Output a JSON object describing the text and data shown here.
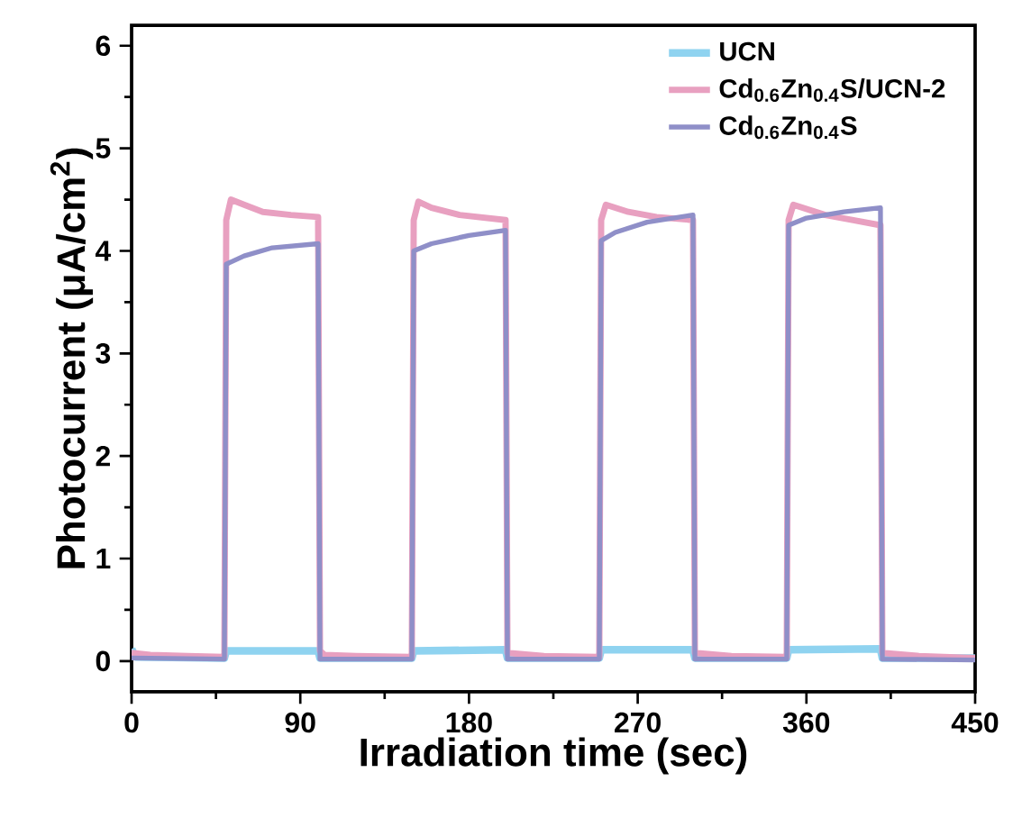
{
  "chart_data": {
    "type": "line",
    "xlabel": "Irradiation time (sec)",
    "ylabel": "Photocurrent (μA/cm$^{2}$)",
    "xlim": [
      0,
      450
    ],
    "ylim": [
      -0.3,
      6.2
    ],
    "xticks": [
      0,
      90,
      180,
      270,
      360,
      450
    ],
    "yticks": [
      0,
      1,
      2,
      3,
      4,
      5,
      6
    ],
    "legend": "top right",
    "series": [
      {
        "name": "UCN",
        "color": "#8fd3f0",
        "x": [
          0,
          2,
          49.5,
          50.5,
          99.5,
          100.5,
          149.5,
          150.5,
          199.5,
          200.5,
          249.5,
          250.5,
          299.5,
          300.5,
          349.5,
          350.5,
          399.5,
          400.5,
          450
        ],
        "values": [
          0.12,
          0.04,
          0.03,
          0.1,
          0.1,
          0.03,
          0.03,
          0.1,
          0.11,
          0.03,
          0.03,
          0.11,
          0.11,
          0.03,
          0.03,
          0.11,
          0.12,
          0.03,
          0.03
        ]
      },
      {
        "name": "Cd$_{0.6}$Zn$_{0.4}$S/UCN-2",
        "color": "#e8a0c0",
        "x": [
          0,
          10,
          30,
          49.5,
          50.5,
          53,
          60,
          70,
          85,
          99.5,
          100.5,
          103,
          120,
          149.5,
          150.5,
          153,
          160,
          175,
          199.5,
          200.5,
          220,
          249.5,
          250.5,
          253,
          265,
          280,
          299.5,
          300.5,
          320,
          349.5,
          350.5,
          353,
          370,
          385,
          399.5,
          400.5,
          420,
          450
        ],
        "values": [
          0.08,
          0.06,
          0.05,
          0.04,
          4.3,
          4.5,
          4.45,
          4.38,
          4.35,
          4.33,
          0.1,
          0.06,
          0.05,
          0.04,
          4.3,
          4.48,
          4.42,
          4.35,
          4.3,
          0.08,
          0.05,
          0.04,
          4.3,
          4.45,
          4.38,
          4.33,
          4.3,
          0.08,
          0.05,
          0.04,
          4.3,
          4.45,
          4.35,
          4.3,
          4.25,
          0.08,
          0.05,
          0.03
        ]
      },
      {
        "name": "Cd$_{0.6}$Zn$_{0.4}$S",
        "color": "#8f8fc8",
        "x": [
          0,
          49.5,
          50.5,
          60,
          75,
          99.5,
          100.5,
          149.5,
          150.5,
          160,
          180,
          199.5,
          200.5,
          249.5,
          250.5,
          258,
          275,
          299.5,
          300.5,
          349.5,
          350.5,
          360,
          380,
          399.5,
          400.5,
          450
        ],
        "values": [
          0.03,
          0.02,
          3.87,
          3.95,
          4.03,
          4.07,
          0.02,
          0.02,
          4.0,
          4.07,
          4.15,
          4.2,
          0.02,
          0.02,
          4.1,
          4.18,
          4.28,
          4.35,
          0.02,
          0.02,
          4.25,
          4.32,
          4.38,
          4.42,
          0.02,
          0.01
        ]
      }
    ]
  }
}
